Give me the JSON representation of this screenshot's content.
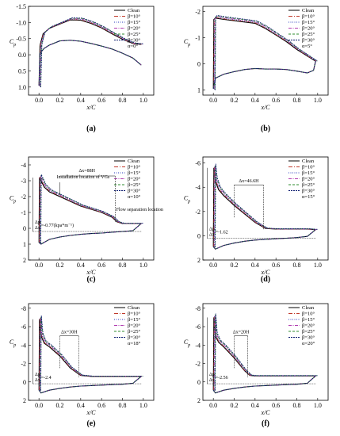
{
  "chart_data": [
    {
      "panel": "(a)",
      "type": "line",
      "xlabel": "x/C",
      "ylabel": "Cp",
      "xlim": [
        -0.1,
        1.1
      ],
      "ylim": [
        -1.5,
        1.25
      ],
      "yreversed": true,
      "xticks": [
        "0.0",
        "0.2",
        "0.4",
        "0.6",
        "0.8",
        "1.0"
      ],
      "yticks": [
        "-1.5",
        "-1.0",
        "-0.5",
        "0.0",
        "0.5",
        "1.0"
      ],
      "ytick_values": [
        -1.5,
        -1.0,
        -0.5,
        0.0,
        0.5,
        1.0
      ],
      "alpha": "α=0°",
      "legend": [
        "Clean",
        "β=10°",
        "β=15°",
        "β=20°",
        "β=25°",
        "β=30°"
      ],
      "upper": [
        [
          0,
          0.95
        ],
        [
          0.01,
          -0.3
        ],
        [
          0.04,
          -0.65
        ],
        [
          0.1,
          -0.82
        ],
        [
          0.2,
          -0.95
        ],
        [
          0.3,
          -1.08
        ],
        [
          0.4,
          -1.07
        ],
        [
          0.5,
          -0.97
        ],
        [
          0.6,
          -0.83
        ],
        [
          0.7,
          -0.65
        ],
        [
          0.8,
          -0.48
        ],
        [
          0.9,
          -0.35
        ],
        [
          0.98,
          -0.32
        ]
      ],
      "lower": [
        [
          0,
          0.95
        ],
        [
          0.01,
          -0.05
        ],
        [
          0.05,
          -0.2
        ],
        [
          0.1,
          -0.3
        ],
        [
          0.2,
          -0.43
        ],
        [
          0.3,
          -0.45
        ],
        [
          0.4,
          -0.42
        ],
        [
          0.5,
          -0.35
        ],
        [
          0.6,
          -0.27
        ],
        [
          0.7,
          -0.18
        ],
        [
          0.8,
          -0.05
        ],
        [
          0.9,
          0.1
        ],
        [
          0.98,
          0.32
        ]
      ],
      "annotations": []
    },
    {
      "panel": "(b)",
      "type": "line",
      "xlabel": "x/C",
      "ylabel": "Cp",
      "xlim": [
        -0.1,
        1.1
      ],
      "ylim": [
        -2.2,
        1.2
      ],
      "yreversed": true,
      "xticks": [
        "0.0",
        "0.2",
        "0.4",
        "0.6",
        "0.8",
        "1.0"
      ],
      "yticks": [
        "-2",
        "-1",
        "0",
        "1"
      ],
      "ytick_values": [
        -2,
        -1,
        0,
        1
      ],
      "alpha": "α=5°",
      "legend": [
        "Clean",
        "β=10°",
        "β=15°",
        "β=20°",
        "β=25°",
        "β=30°"
      ],
      "upper": [
        [
          0,
          0.95
        ],
        [
          0.005,
          -1.7
        ],
        [
          0.02,
          -1.75
        ],
        [
          0.1,
          -1.7
        ],
        [
          0.2,
          -1.65
        ],
        [
          0.3,
          -1.6
        ],
        [
          0.4,
          -1.55
        ],
        [
          0.5,
          -1.35
        ],
        [
          0.6,
          -1.1
        ],
        [
          0.7,
          -0.85
        ],
        [
          0.8,
          -0.55
        ],
        [
          0.9,
          -0.3
        ],
        [
          0.98,
          -0.1
        ]
      ],
      "lower": [
        [
          0,
          0.95
        ],
        [
          0.02,
          0.55
        ],
        [
          0.1,
          0.4
        ],
        [
          0.2,
          0.3
        ],
        [
          0.3,
          0.22
        ],
        [
          0.4,
          0.18
        ],
        [
          0.5,
          0.2
        ],
        [
          0.6,
          0.2
        ],
        [
          0.7,
          0.22
        ],
        [
          0.8,
          0.28
        ],
        [
          0.9,
          0.35
        ],
        [
          0.96,
          0.25
        ],
        [
          0.98,
          -0.1
        ]
      ],
      "annotations": []
    },
    {
      "panel": "(c)",
      "type": "line",
      "xlabel": "x/C",
      "ylabel": "Cp",
      "xlim": [
        -0.1,
        1.1
      ],
      "ylim": [
        -4.5,
        2
      ],
      "yreversed": true,
      "xticks": [
        "0.0",
        "0.2",
        "0.4",
        "0.6",
        "0.8",
        "1.0"
      ],
      "yticks": [
        "-4",
        "-3",
        "-2",
        "-1",
        "0",
        "1",
        "2"
      ],
      "ytick_values": [
        -4,
        -3,
        -2,
        -1,
        0,
        1,
        2
      ],
      "alpha": "α=10°",
      "legend": [
        "Clean",
        "β=10°",
        "β=15°",
        "β=20°",
        "β=25°",
        "β=30°"
      ],
      "upper": [
        [
          0,
          0.9
        ],
        [
          0.005,
          -3.2
        ],
        [
          0.02,
          -3.0
        ],
        [
          0.05,
          -2.6
        ],
        [
          0.1,
          -2.3
        ],
        [
          0.2,
          -2.0
        ],
        [
          0.3,
          -1.7
        ],
        [
          0.4,
          -1.4
        ],
        [
          0.5,
          -1.2
        ],
        [
          0.6,
          -1.0
        ],
        [
          0.7,
          -0.7
        ],
        [
          0.75,
          -0.4
        ],
        [
          0.8,
          -0.3
        ],
        [
          0.9,
          -0.3
        ],
        [
          0.98,
          -0.3
        ]
      ],
      "lower": [
        [
          0,
          0.9
        ],
        [
          0.02,
          1.0
        ],
        [
          0.1,
          0.7
        ],
        [
          0.2,
          0.55
        ],
        [
          0.3,
          0.45
        ],
        [
          0.4,
          0.38
        ],
        [
          0.5,
          0.33
        ],
        [
          0.6,
          0.3
        ],
        [
          0.7,
          0.25
        ],
        [
          0.8,
          0.2
        ],
        [
          0.9,
          0.15
        ],
        [
          0.98,
          -0.3
        ]
      ],
      "annotations": [
        "Installation location of VGs",
        "Δx=88H",
        "Flow separation location",
        "Δp",
        "Δx",
        "=-0.77(kpa*m⁻¹)"
      ]
    },
    {
      "panel": "(d)",
      "type": "line",
      "xlabel": "x/C",
      "ylabel": "Cp",
      "xlim": [
        -0.1,
        1.1
      ],
      "ylim": [
        -6.5,
        2
      ],
      "yreversed": true,
      "xticks": [
        "0.0",
        "0.2",
        "0.4",
        "0.6",
        "0.8",
        "1.0"
      ],
      "yticks": [
        "-6",
        "-4",
        "-2",
        "0",
        "2"
      ],
      "ytick_values": [
        -6,
        -4,
        -2,
        0,
        2
      ],
      "alpha": "α=15°",
      "legend": [
        "Clean",
        "β=10°",
        "β=15°",
        "β=20°",
        "β=25°",
        "β=30°"
      ],
      "upper": [
        [
          0,
          0.9
        ],
        [
          0.005,
          -5.6
        ],
        [
          0.02,
          -4.5
        ],
        [
          0.05,
          -3.8
        ],
        [
          0.1,
          -3.3
        ],
        [
          0.2,
          -2.5
        ],
        [
          0.3,
          -1.8
        ],
        [
          0.4,
          -1.1
        ],
        [
          0.5,
          -0.6
        ],
        [
          0.6,
          -0.55
        ],
        [
          0.7,
          -0.55
        ],
        [
          0.8,
          -0.55
        ],
        [
          0.9,
          -0.55
        ],
        [
          0.98,
          -0.5
        ]
      ],
      "lower": [
        [
          0,
          0.9
        ],
        [
          0.02,
          1.1
        ],
        [
          0.1,
          0.8
        ],
        [
          0.2,
          0.6
        ],
        [
          0.3,
          0.45
        ],
        [
          0.4,
          0.35
        ],
        [
          0.5,
          0.3
        ],
        [
          0.6,
          0.25
        ],
        [
          0.7,
          0.2
        ],
        [
          0.8,
          0.15
        ],
        [
          0.9,
          0.05
        ],
        [
          0.98,
          -0.5
        ]
      ],
      "annotations": [
        "Δx=46.6H",
        "Δp",
        "Δx",
        "=-1.62"
      ]
    },
    {
      "panel": "(e)",
      "type": "line",
      "xlabel": "x/C",
      "ylabel": "Cp",
      "xlim": [
        -0.1,
        1.1
      ],
      "ylim": [
        -8.5,
        2
      ],
      "yreversed": true,
      "xticks": [
        "0.0",
        "0.2",
        "0.4",
        "0.6",
        "0.8",
        "1.0"
      ],
      "yticks": [
        "-8",
        "-6",
        "-4",
        "-2",
        "0",
        "2"
      ],
      "ytick_values": [
        -8,
        -6,
        -4,
        -2,
        0,
        2
      ],
      "alpha": "α=18°",
      "legend": [
        "Clean",
        "β=10°",
        "β=15°",
        "β=20°",
        "β=25°",
        "β=30°"
      ],
      "upper": [
        [
          0,
          0.9
        ],
        [
          0.005,
          -6.8
        ],
        [
          0.02,
          -5.0
        ],
        [
          0.05,
          -4.2
        ],
        [
          0.1,
          -3.8
        ],
        [
          0.2,
          -2.8
        ],
        [
          0.3,
          -1.5
        ],
        [
          0.4,
          -0.7
        ],
        [
          0.5,
          -0.6
        ],
        [
          0.6,
          -0.6
        ],
        [
          0.7,
          -0.6
        ],
        [
          0.8,
          -0.6
        ],
        [
          0.9,
          -0.6
        ],
        [
          0.98,
          -0.6
        ]
      ],
      "lower": [
        [
          0,
          0.9
        ],
        [
          0.02,
          1.2
        ],
        [
          0.1,
          0.9
        ],
        [
          0.2,
          0.7
        ],
        [
          0.3,
          0.55
        ],
        [
          0.4,
          0.45
        ],
        [
          0.5,
          0.4
        ],
        [
          0.6,
          0.35
        ],
        [
          0.7,
          0.3
        ],
        [
          0.8,
          0.25
        ],
        [
          0.9,
          0.15
        ],
        [
          0.98,
          -0.6
        ]
      ],
      "annotations": [
        "Δx=30H",
        "Δp",
        "Δx",
        "=-2.4"
      ]
    },
    {
      "panel": "(f)",
      "type": "line",
      "xlabel": "x/C",
      "ylabel": "Cp",
      "xlim": [
        -0.1,
        1.1
      ],
      "ylim": [
        -8.5,
        2
      ],
      "yreversed": true,
      "xticks": [
        "0.0",
        "0.2",
        "0.4",
        "0.6",
        "0.8",
        "1.0"
      ],
      "yticks": [
        "-8",
        "-6",
        "-4",
        "-2",
        "0",
        "2"
      ],
      "ytick_values": [
        -8,
        -6,
        -4,
        -2,
        0,
        2
      ],
      "alpha": "α=20°",
      "legend": [
        "Clean",
        "β=10°",
        "β=15°",
        "β=20°",
        "β=25°",
        "β=30°"
      ],
      "upper": [
        [
          0,
          0.9
        ],
        [
          0.005,
          -7.0
        ],
        [
          0.02,
          -5.0
        ],
        [
          0.05,
          -4.3
        ],
        [
          0.1,
          -3.8
        ],
        [
          0.2,
          -2.6
        ],
        [
          0.3,
          -1.2
        ],
        [
          0.35,
          -0.7
        ],
        [
          0.4,
          -0.65
        ],
        [
          0.5,
          -0.65
        ],
        [
          0.6,
          -0.65
        ],
        [
          0.7,
          -0.65
        ],
        [
          0.8,
          -0.65
        ],
        [
          0.9,
          -0.65
        ],
        [
          0.98,
          -0.65
        ]
      ],
      "lower": [
        [
          0,
          0.9
        ],
        [
          0.02,
          1.2
        ],
        [
          0.1,
          0.9
        ],
        [
          0.2,
          0.7
        ],
        [
          0.3,
          0.55
        ],
        [
          0.4,
          0.45
        ],
        [
          0.5,
          0.4
        ],
        [
          0.6,
          0.35
        ],
        [
          0.7,
          0.3
        ],
        [
          0.8,
          0.25
        ],
        [
          0.9,
          0.15
        ],
        [
          0.98,
          -0.65
        ]
      ],
      "annotations": [
        "Δx=20H",
        "Δp",
        "Δx",
        "=-2.56"
      ]
    }
  ]
}
